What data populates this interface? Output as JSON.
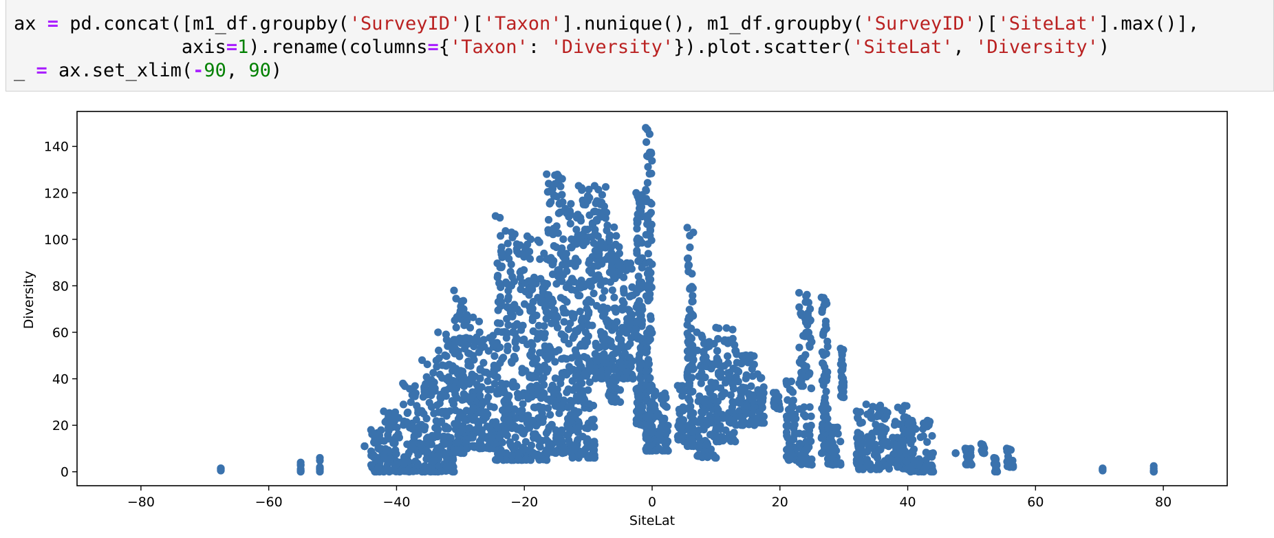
{
  "code_cell": {
    "lines": [
      [
        {
          "t": "ax ",
          "c": ""
        },
        {
          "t": "=",
          "c": "kw"
        },
        {
          "t": " pd.concat([m1_df.groupby(",
          "c": ""
        },
        {
          "t": "'SurveyID'",
          "c": "str"
        },
        {
          "t": ")[",
          "c": ""
        },
        {
          "t": "'Taxon'",
          "c": "str"
        },
        {
          "t": "].nunique(), m1_df.groupby(",
          "c": ""
        },
        {
          "t": "'SurveyID'",
          "c": "str"
        },
        {
          "t": ")[",
          "c": ""
        },
        {
          "t": "'SiteLat'",
          "c": "str"
        },
        {
          "t": "].max()],",
          "c": ""
        }
      ],
      [
        {
          "t": "               axis",
          "c": ""
        },
        {
          "t": "=",
          "c": "kw"
        },
        {
          "t": "1",
          "c": "num"
        },
        {
          "t": ").rename(columns",
          "c": ""
        },
        {
          "t": "=",
          "c": "kw"
        },
        {
          "t": "{",
          "c": ""
        },
        {
          "t": "'Taxon'",
          "c": "str"
        },
        {
          "t": ": ",
          "c": ""
        },
        {
          "t": "'Diversity'",
          "c": "str"
        },
        {
          "t": "}).plot.scatter(",
          "c": ""
        },
        {
          "t": "'SiteLat'",
          "c": "str"
        },
        {
          "t": ", ",
          "c": ""
        },
        {
          "t": "'Diversity'",
          "c": "str"
        },
        {
          "t": ")",
          "c": ""
        }
      ],
      [
        {
          "t": "_ ",
          "c": ""
        },
        {
          "t": "=",
          "c": "kw"
        },
        {
          "t": " ax.set_xlim(",
          "c": ""
        },
        {
          "t": "-",
          "c": "kw"
        },
        {
          "t": "90",
          "c": "num"
        },
        {
          "t": ", ",
          "c": ""
        },
        {
          "t": "90",
          "c": "num"
        },
        {
          "t": ")",
          "c": ""
        }
      ]
    ]
  },
  "colors": {
    "points": "#3a72ad",
    "frame": "#000000"
  },
  "chart_data": {
    "type": "scatter",
    "xlabel": "SiteLat",
    "ylabel": "Diversity",
    "xlim": [
      -90,
      90
    ],
    "ylim": [
      -6,
      155
    ],
    "xticks": [
      -80,
      -60,
      -40,
      -20,
      0,
      20,
      40,
      60,
      80
    ],
    "xtick_labels": [
      "−80",
      "−60",
      "−40",
      "−20",
      "0",
      "20",
      "40",
      "60",
      "80"
    ],
    "yticks": [
      0,
      20,
      40,
      60,
      80,
      100,
      120,
      140
    ],
    "ytick_labels": [
      "0",
      "20",
      "40",
      "60",
      "80",
      "100",
      "120",
      "140"
    ],
    "grid": false,
    "legend": "none",
    "clusters": [
      {
        "x": [
          -67.5,
          -67.5
        ],
        "y": [
          0.5,
          1.5
        ]
      },
      {
        "x": [
          -55,
          -55
        ],
        "y": [
          0,
          4
        ]
      },
      {
        "x": [
          -52,
          -52
        ],
        "y": [
          0,
          6
        ]
      },
      {
        "x": [
          -45,
          -45
        ],
        "y": [
          11,
          11
        ]
      },
      {
        "x": [
          -44,
          -42
        ],
        "y": [
          0,
          18
        ]
      },
      {
        "x": [
          -42,
          -39.5
        ],
        "y": [
          0,
          26
        ]
      },
      {
        "x": [
          -39,
          -36
        ],
        "y": [
          0,
          38
        ]
      },
      {
        "x": [
          -36,
          -33.5
        ],
        "y": [
          0,
          48
        ]
      },
      {
        "x": [
          -33.5,
          -31
        ],
        "y": [
          0,
          60
        ]
      },
      {
        "x": [
          -31,
          -29.5
        ],
        "y": [
          8,
          78
        ]
      },
      {
        "x": [
          -29.5,
          -27
        ],
        "y": [
          10,
          70
        ]
      },
      {
        "x": [
          -27,
          -24.5
        ],
        "y": [
          10,
          60
        ]
      },
      {
        "x": [
          -24.5,
          -22
        ],
        "y": [
          5,
          110
        ]
      },
      {
        "x": [
          -22,
          -19
        ],
        "y": [
          5,
          103
        ]
      },
      {
        "x": [
          -19,
          -16.5
        ],
        "y": [
          5,
          100
        ]
      },
      {
        "x": [
          -16.5,
          -14
        ],
        "y": [
          8,
          128
        ]
      },
      {
        "x": [
          -14,
          -11.5
        ],
        "y": [
          6,
          116
        ]
      },
      {
        "x": [
          -11.5,
          -9
        ],
        "y": [
          6,
          123
        ]
      },
      {
        "x": [
          -9,
          -7
        ],
        "y": [
          40,
          123
        ]
      },
      {
        "x": [
          -7,
          -5
        ],
        "y": [
          30,
          106
        ]
      },
      {
        "x": [
          -5,
          -3
        ],
        "y": [
          40,
          90
        ]
      },
      {
        "x": [
          -2.5,
          -1.5
        ],
        "y": [
          20,
          120
        ]
      },
      {
        "x": [
          -1,
          0
        ],
        "y": [
          9,
          148
        ]
      },
      {
        "x": [
          0,
          2.5
        ],
        "y": [
          9,
          36
        ]
      },
      {
        "x": [
          4,
          5
        ],
        "y": [
          13,
          37
        ]
      },
      {
        "x": [
          5.5,
          6.5
        ],
        "y": [
          11,
          105
        ]
      },
      {
        "x": [
          7,
          10
        ],
        "y": [
          6,
          60
        ]
      },
      {
        "x": [
          10,
          13
        ],
        "y": [
          13,
          62
        ]
      },
      {
        "x": [
          13,
          16
        ],
        "y": [
          20,
          52
        ]
      },
      {
        "x": [
          16.5,
          17.5
        ],
        "y": [
          21,
          42
        ]
      },
      {
        "x": [
          19,
          20
        ],
        "y": [
          27,
          34
        ]
      },
      {
        "x": [
          21,
          22.5
        ],
        "y": [
          5,
          39
        ]
      },
      {
        "x": [
          23,
          25
        ],
        "y": [
          3,
          77
        ]
      },
      {
        "x": [
          26.5,
          27.5
        ],
        "y": [
          8,
          75
        ]
      },
      {
        "x": [
          27.5,
          29.5
        ],
        "y": [
          3,
          20
        ]
      },
      {
        "x": [
          29.5,
          30
        ],
        "y": [
          32,
          53
        ]
      },
      {
        "x": [
          32,
          33
        ],
        "y": [
          1,
          26
        ]
      },
      {
        "x": [
          33.5,
          40
        ],
        "y": [
          1,
          29
        ]
      },
      {
        "x": [
          40,
          44
        ],
        "y": [
          0,
          23
        ]
      },
      {
        "x": [
          47.5,
          47.5
        ],
        "y": [
          8,
          8
        ]
      },
      {
        "x": [
          49,
          50
        ],
        "y": [
          3,
          10
        ]
      },
      {
        "x": [
          51.5,
          52
        ],
        "y": [
          8,
          12
        ]
      },
      {
        "x": [
          53.5,
          54
        ],
        "y": [
          0,
          6
        ]
      },
      {
        "x": [
          55.5,
          56.5
        ],
        "y": [
          2,
          10
        ]
      },
      {
        "x": [
          70.5,
          70.5
        ],
        "y": [
          0.5,
          1.5
        ]
      },
      {
        "x": [
          78.5,
          78.5
        ],
        "y": [
          0,
          2.5
        ]
      }
    ]
  }
}
